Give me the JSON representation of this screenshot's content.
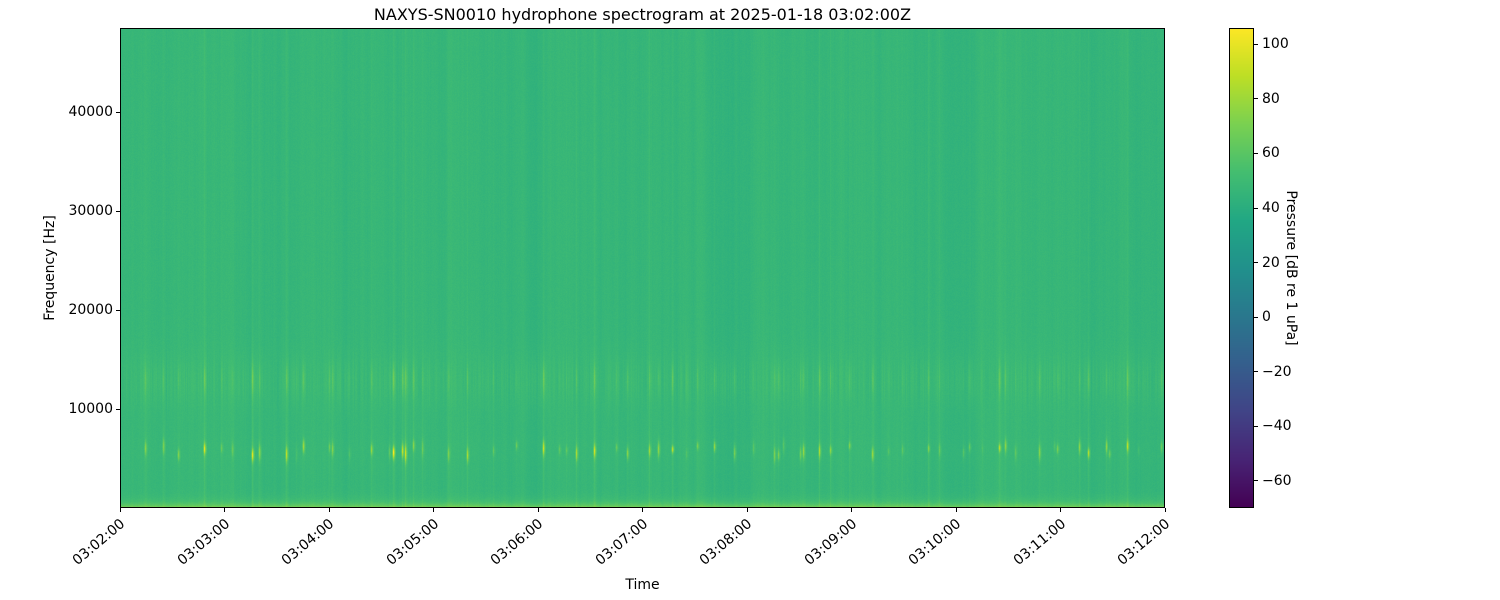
{
  "figure": {
    "title": "NAXYS-SN0010 hydrophone spectrogram at 2025-01-18 03:02:00Z",
    "background_color": "#ffffff"
  },
  "axes": {
    "xlabel": "Time",
    "ylabel": "Frequency [Hz]",
    "x_tick_labels": [
      "03:02:00",
      "03:03:00",
      "03:04:00",
      "03:05:00",
      "03:06:00",
      "03:07:00",
      "03:08:00",
      "03:09:00",
      "03:10:00",
      "03:11:00",
      "03:12:00"
    ],
    "y_tick_labels": [
      "10000",
      "20000",
      "30000",
      "40000"
    ],
    "x_tick_rotation_deg": -40,
    "frame_color": "#000000"
  },
  "colorbar": {
    "label": "Pressure [dB re 1 uPa]",
    "tick_labels": [
      "100",
      "80",
      "60",
      "40",
      "20",
      "0",
      "−20",
      "−40",
      "−60"
    ],
    "colormap": "viridis",
    "top_color": "#fde725",
    "bottom_color": "#440154"
  },
  "chart_data": {
    "type": "heatmap",
    "subtype": "spectrogram",
    "title": "NAXYS-SN0010 hydrophone spectrogram at 2025-01-18 03:02:00Z",
    "xlabel": "Time",
    "ylabel": "Frequency [Hz]",
    "value_label": "Pressure [dB re 1 uPa]",
    "x_range": [
      "03:02:00",
      "03:12:00"
    ],
    "x_tick_interval_s": 60,
    "y_range_hz": [
      0,
      48500
    ],
    "y_ticks_hz": [
      10000,
      20000,
      30000,
      40000
    ],
    "colorbar_ticks_db": [
      100,
      80,
      60,
      40,
      20,
      0,
      -20,
      -40,
      -60
    ],
    "value_range_db": [
      -70,
      106
    ],
    "colormap": "viridis",
    "grid": false,
    "legend": null,
    "background_level_db": 46,
    "features": [
      {
        "name": "low-frequency-noise-band",
        "freq_hz": [
          0,
          1200
        ],
        "peak_level_db": 70,
        "description": "continuous bright yellow-green stripe along the bottom edge"
      },
      {
        "name": "impulsive-click-band",
        "freq_hz": [
          4800,
          6800
        ],
        "peak_level_db": 100,
        "description": "repetitive bright transient pulses (short dashes) every few seconds"
      },
      {
        "name": "mid-frequency-energy-band",
        "freq_hz": [
          10500,
          15000
        ],
        "level_db": 55,
        "description": "textured band of fine brighter vertical streaks"
      },
      {
        "name": "broadband-transient-streaks",
        "freq_hz": [
          0,
          48500
        ],
        "level_db": 52,
        "description": "faint full-height vertical lines aligned with the pulses"
      }
    ]
  }
}
